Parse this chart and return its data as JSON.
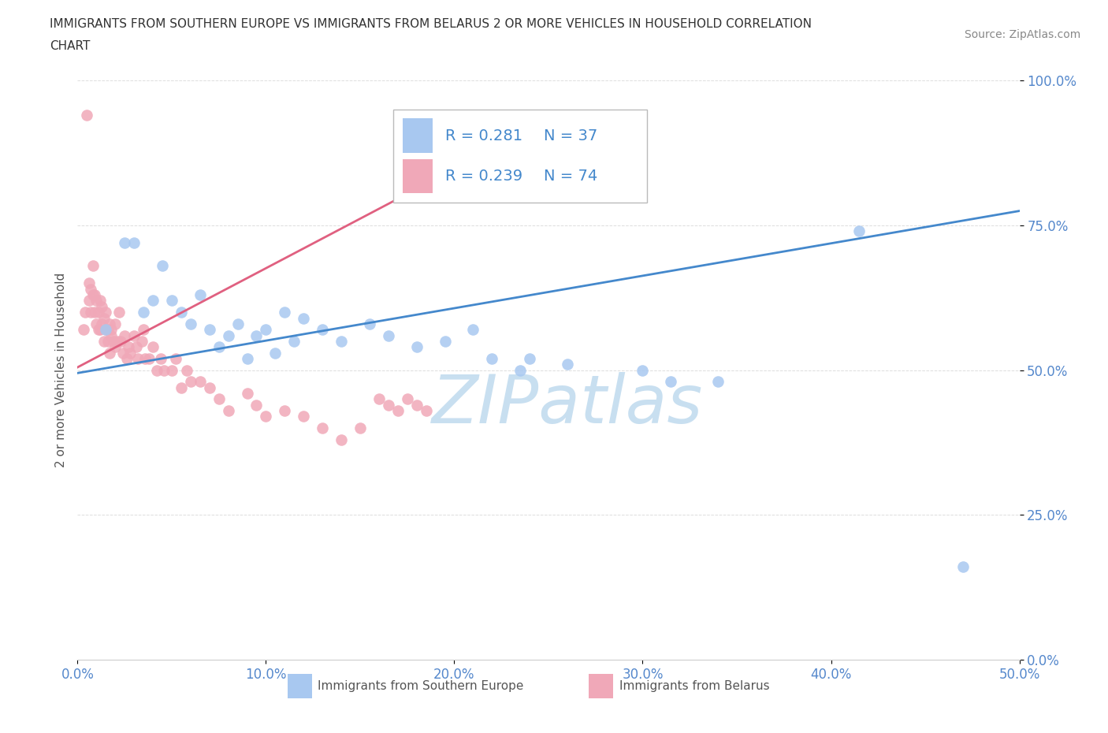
{
  "title_line1": "IMMIGRANTS FROM SOUTHERN EUROPE VS IMMIGRANTS FROM BELARUS 2 OR MORE VEHICLES IN HOUSEHOLD CORRELATION",
  "title_line2": "CHART",
  "source_text": "Source: ZipAtlas.com",
  "ylabel": "2 or more Vehicles in Household",
  "xlim": [
    0.0,
    0.5
  ],
  "ylim": [
    0.0,
    1.0
  ],
  "xtick_labels": [
    "0.0%",
    "10.0%",
    "20.0%",
    "30.0%",
    "40.0%",
    "50.0%"
  ],
  "xtick_values": [
    0.0,
    0.1,
    0.2,
    0.3,
    0.4,
    0.5
  ],
  "ytick_labels": [
    "0.0%",
    "25.0%",
    "50.0%",
    "75.0%",
    "100.0%"
  ],
  "ytick_values": [
    0.0,
    0.25,
    0.5,
    0.75,
    1.0
  ],
  "blue_color": "#a8c8f0",
  "pink_color": "#f0a8b8",
  "blue_line_color": "#4488cc",
  "pink_line_color": "#e06080",
  "legend_R1": "R = 0.281",
  "legend_N1": "N = 37",
  "legend_R2": "R = 0.239",
  "legend_N2": "N = 74",
  "watermark": "ZIPatlas",
  "watermark_color": "#c8dff0",
  "blue_label": "Immigrants from Southern Europe",
  "pink_label": "Immigrants from Belarus",
  "blue_scatter_x": [
    0.015,
    0.025,
    0.03,
    0.035,
    0.04,
    0.045,
    0.05,
    0.055,
    0.06,
    0.065,
    0.07,
    0.075,
    0.08,
    0.085,
    0.09,
    0.095,
    0.1,
    0.105,
    0.11,
    0.115,
    0.12,
    0.13,
    0.14,
    0.155,
    0.165,
    0.18,
    0.195,
    0.21,
    0.22,
    0.235,
    0.24,
    0.26,
    0.3,
    0.315,
    0.34,
    0.415,
    0.47
  ],
  "blue_scatter_y": [
    0.57,
    0.72,
    0.72,
    0.6,
    0.62,
    0.68,
    0.62,
    0.6,
    0.58,
    0.63,
    0.57,
    0.54,
    0.56,
    0.58,
    0.52,
    0.56,
    0.57,
    0.53,
    0.6,
    0.55,
    0.59,
    0.57,
    0.55,
    0.58,
    0.56,
    0.54,
    0.55,
    0.57,
    0.52,
    0.5,
    0.52,
    0.51,
    0.5,
    0.48,
    0.48,
    0.74,
    0.16
  ],
  "pink_scatter_x": [
    0.003,
    0.004,
    0.005,
    0.006,
    0.006,
    0.007,
    0.007,
    0.008,
    0.008,
    0.009,
    0.009,
    0.01,
    0.01,
    0.011,
    0.011,
    0.012,
    0.012,
    0.013,
    0.013,
    0.014,
    0.014,
    0.015,
    0.015,
    0.016,
    0.016,
    0.017,
    0.017,
    0.018,
    0.018,
    0.019,
    0.02,
    0.02,
    0.021,
    0.022,
    0.023,
    0.024,
    0.025,
    0.026,
    0.027,
    0.028,
    0.03,
    0.031,
    0.032,
    0.034,
    0.035,
    0.036,
    0.038,
    0.04,
    0.042,
    0.044,
    0.046,
    0.05,
    0.052,
    0.055,
    0.058,
    0.06,
    0.065,
    0.07,
    0.075,
    0.08,
    0.09,
    0.095,
    0.1,
    0.11,
    0.12,
    0.13,
    0.14,
    0.15,
    0.16,
    0.165,
    0.17,
    0.175,
    0.18,
    0.185
  ],
  "pink_scatter_y": [
    0.57,
    0.6,
    0.94,
    0.62,
    0.65,
    0.6,
    0.64,
    0.63,
    0.68,
    0.6,
    0.63,
    0.58,
    0.62,
    0.57,
    0.6,
    0.62,
    0.57,
    0.58,
    0.61,
    0.55,
    0.59,
    0.57,
    0.6,
    0.55,
    0.57,
    0.58,
    0.53,
    0.57,
    0.56,
    0.55,
    0.58,
    0.54,
    0.55,
    0.6,
    0.55,
    0.53,
    0.56,
    0.52,
    0.54,
    0.53,
    0.56,
    0.54,
    0.52,
    0.55,
    0.57,
    0.52,
    0.52,
    0.54,
    0.5,
    0.52,
    0.5,
    0.5,
    0.52,
    0.47,
    0.5,
    0.48,
    0.48,
    0.47,
    0.45,
    0.43,
    0.46,
    0.44,
    0.42,
    0.43,
    0.42,
    0.4,
    0.38,
    0.4,
    0.45,
    0.44,
    0.43,
    0.45,
    0.44,
    0.43
  ],
  "blue_trendline_x": [
    0.0,
    0.5
  ],
  "blue_trendline_y": [
    0.495,
    0.775
  ],
  "pink_trendline_x": [
    0.0,
    0.19
  ],
  "pink_trendline_y": [
    0.505,
    0.83
  ]
}
